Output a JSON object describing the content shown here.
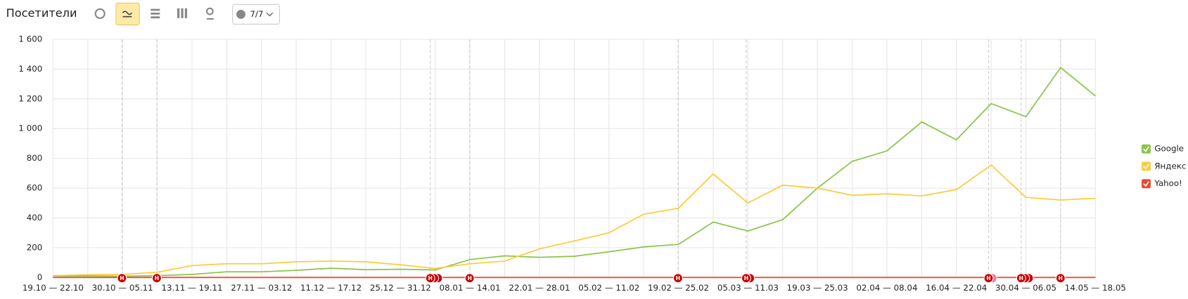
{
  "toolbar": {
    "title": "Посетители",
    "button": "7/7"
  },
  "markers": [
    "Н",
    "Н",
    "Н",
    "Н",
    "Н",
    "Н",
    "Н",
    "Н",
    "Н"
  ],
  "chart_data": {
    "type": "line",
    "categories": [
      "19.10 — 22.10",
      null,
      "30.10 — 05.11",
      null,
      "13.11 — 19.11",
      null,
      "27.11 — 03.12",
      null,
      "11.12 — 17.12",
      null,
      "25.12 — 31.12",
      null,
      "08.01 — 14.01",
      null,
      "22.01 — 28.01",
      null,
      "05.02 — 11.02",
      null,
      "19.02 — 25.02",
      null,
      "05.03 — 11.03",
      null,
      "19.03 — 25.03",
      null,
      "02.04 — 08.04",
      null,
      "16.04 — 22.04",
      null,
      "30.04 — 06.05",
      null,
      "14.05 — 18.05"
    ],
    "series": [
      {
        "name": "Google",
        "color": "#8bc34a",
        "values": [
          10,
          10,
          8,
          12,
          20,
          38,
          38,
          48,
          62,
          52,
          55,
          50,
          120,
          145,
          135,
          142,
          172,
          205,
          222,
          372,
          312,
          388,
          600,
          780,
          850,
          1045,
          925,
          1168,
          1080,
          1410,
          1220
        ]
      },
      {
        "name": "Яндекс",
        "color": "#fdcb3a",
        "values": [
          12,
          18,
          20,
          35,
          80,
          92,
          92,
          105,
          110,
          105,
          85,
          60,
          92,
          110,
          192,
          245,
          300,
          425,
          465,
          695,
          500,
          620,
          600,
          552,
          562,
          548,
          590,
          755,
          538,
          520,
          532
        ]
      },
      {
        "name": "Yahoo!",
        "color": "#f0462d",
        "values": [
          0,
          0,
          0,
          0,
          0,
          0,
          0,
          0,
          0,
          0,
          0,
          0,
          0,
          0,
          0,
          0,
          0,
          0,
          0,
          0,
          0,
          0,
          0,
          0,
          0,
          0,
          0,
          0,
          0,
          0,
          0
        ]
      }
    ],
    "ylim": [
      0,
      1600
    ],
    "yticks": [
      0,
      200,
      400,
      600,
      800,
      {
        "value": 1000,
        "label": "1 000"
      },
      {
        "value": 1200,
        "label": "1 200"
      },
      {
        "value": 1400,
        "label": "1 400"
      },
      {
        "value": 1600,
        "label": "1 600"
      }
    ],
    "grid": true,
    "legend": "right"
  }
}
